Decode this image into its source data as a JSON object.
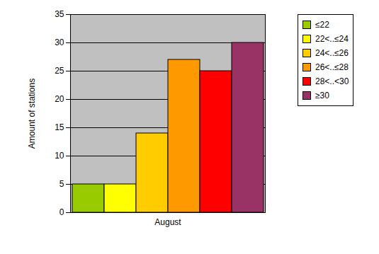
{
  "chart_data": {
    "type": "bar",
    "categories": [
      "August"
    ],
    "ylabel": "Amount of stations",
    "series": [
      {
        "name": "≤22",
        "color": "#99cc00",
        "values": [
          5
        ]
      },
      {
        "name": "22<..≤24",
        "color": "#ffff00",
        "values": [
          5
        ]
      },
      {
        "name": "24<..≤26",
        "color": "#ffcc00",
        "values": [
          14
        ]
      },
      {
        "name": "26<..≤28",
        "color": "#ff9900",
        "values": [
          27
        ]
      },
      {
        "name": "28<..<30",
        "color": "#ff0000",
        "values": [
          25
        ]
      },
      {
        "name": "≥30",
        "color": "#993366",
        "values": [
          30
        ]
      }
    ],
    "ylim": [
      0,
      35
    ],
    "yticks": [
      0,
      5,
      10,
      15,
      20,
      25,
      30,
      35
    ],
    "grid": true,
    "legend": "upper right"
  }
}
